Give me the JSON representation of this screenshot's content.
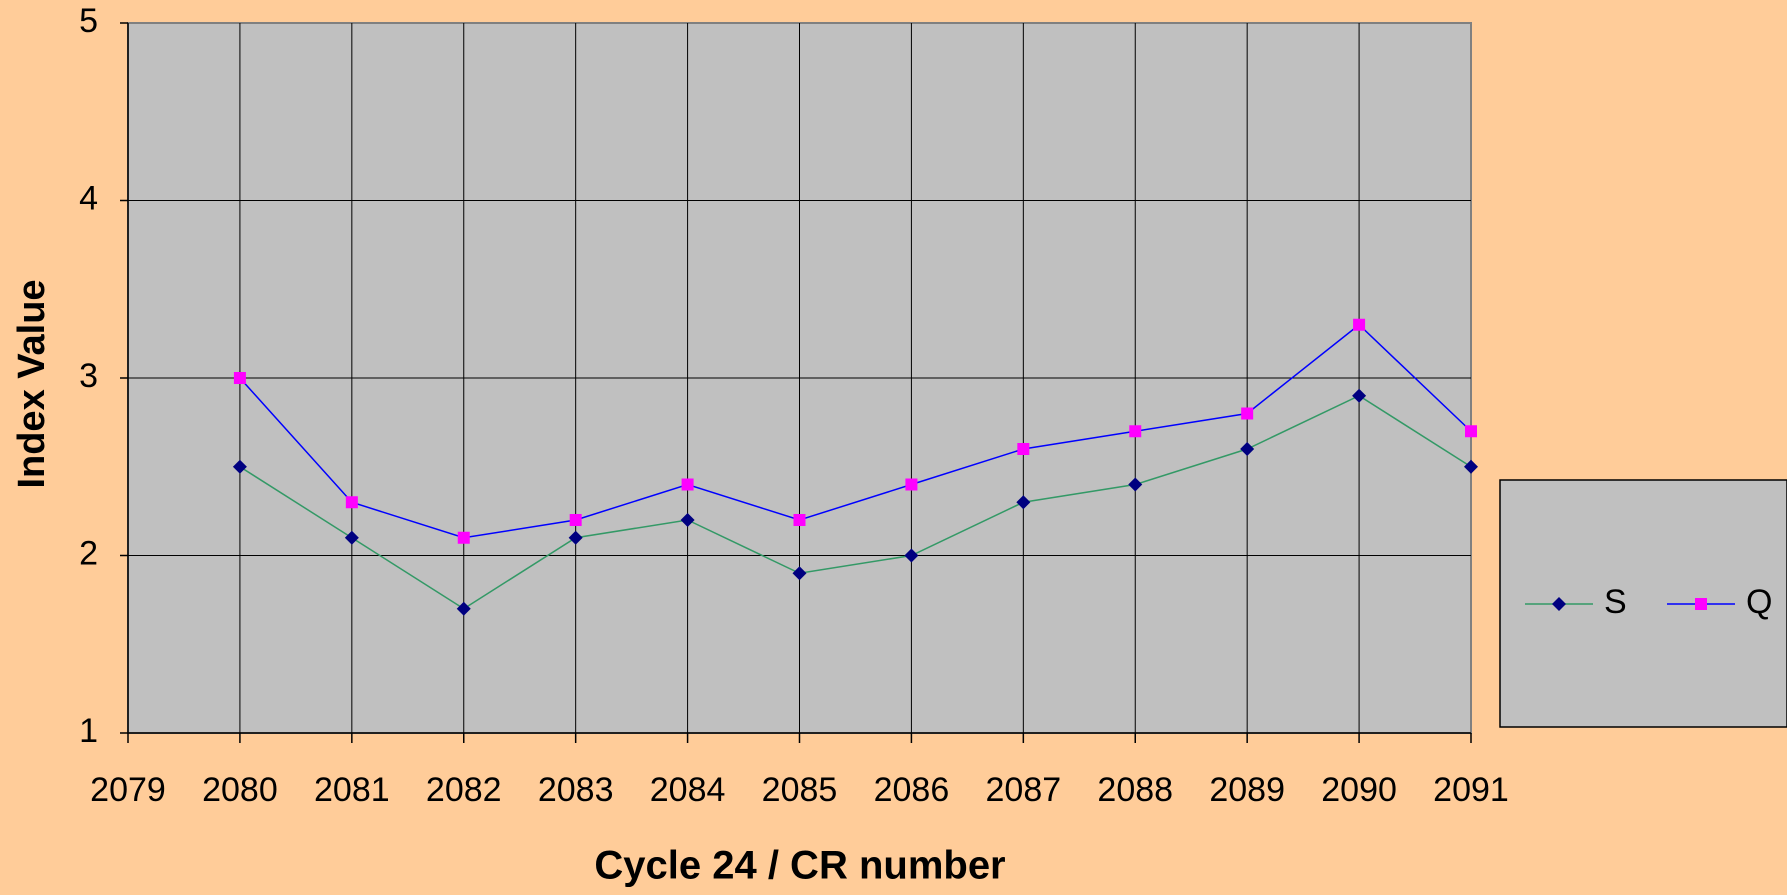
{
  "chart_data": {
    "type": "line",
    "xlabel": "Cycle 24 /  CR number",
    "ylabel": "Index Value",
    "x": [
      2080,
      2081,
      2082,
      2083,
      2084,
      2085,
      2086,
      2087,
      2088,
      2089,
      2090,
      2091
    ],
    "series": [
      {
        "name": "S",
        "color": "#339966",
        "marker_color": "#000080",
        "marker": "diamond",
        "values": [
          2.5,
          2.1,
          1.7,
          2.1,
          2.2,
          1.9,
          2.0,
          2.3,
          2.4,
          2.6,
          2.9,
          2.5
        ]
      },
      {
        "name": "Q",
        "color": "#0000ff",
        "marker_color": "#ff00ff",
        "marker": "square",
        "values": [
          3.0,
          2.3,
          2.1,
          2.2,
          2.4,
          2.2,
          2.4,
          2.6,
          2.7,
          2.8,
          3.3,
          2.7
        ]
      }
    ],
    "xlim": [
      2079,
      2091
    ],
    "xticks": [
      2079,
      2080,
      2081,
      2082,
      2083,
      2084,
      2085,
      2086,
      2087,
      2088,
      2089,
      2090,
      2091
    ],
    "ylim": [
      1,
      5
    ],
    "yticks": [
      1,
      2,
      3,
      4,
      5
    ],
    "grid": true,
    "legend": "right"
  }
}
